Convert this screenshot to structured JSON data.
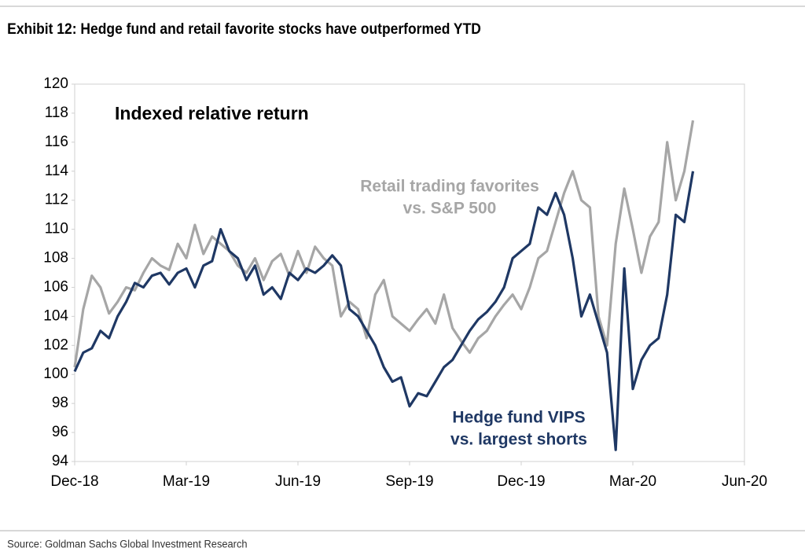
{
  "header": {
    "title": "Exhibit 12: Hedge fund and retail favorite stocks have outperformed YTD"
  },
  "chart_data": {
    "type": "line",
    "title": "Indexed relative return",
    "categories": [
      "Dec-18",
      null,
      null,
      null,
      null,
      null,
      null,
      null,
      null,
      null,
      null,
      null,
      null,
      "Mar-19",
      null,
      null,
      null,
      null,
      null,
      null,
      null,
      null,
      null,
      null,
      null,
      null,
      "Jun-19",
      null,
      null,
      null,
      null,
      null,
      null,
      null,
      null,
      null,
      null,
      null,
      null,
      "Sep-19",
      null,
      null,
      null,
      null,
      null,
      null,
      null,
      null,
      null,
      null,
      null,
      null,
      "Dec-19",
      null,
      null,
      null,
      null,
      null,
      null,
      null,
      null,
      null,
      null,
      null,
      null,
      "Mar-20",
      null,
      null,
      null,
      null,
      null,
      null,
      null,
      null,
      null,
      null,
      null,
      null,
      "Jun-20"
    ],
    "series": [
      {
        "label_lines": [
          "Retail trading favorites",
          "vs. S&P 500"
        ],
        "color": "#a6a6a6",
        "values": [
          100.5,
          104.5,
          106.8,
          106.0,
          104.2,
          105.0,
          106.0,
          105.8,
          107.0,
          108.0,
          107.5,
          107.2,
          109.0,
          108.0,
          110.3,
          108.3,
          109.5,
          109.0,
          108.5,
          107.5,
          107.0,
          108.0,
          106.5,
          107.8,
          108.3,
          106.8,
          108.5,
          107.0,
          108.8,
          108.0,
          107.5,
          104.0,
          105.0,
          104.5,
          102.5,
          105.5,
          106.5,
          104.0,
          103.5,
          103.0,
          103.8,
          104.5,
          103.5,
          105.5,
          103.2,
          102.3,
          101.5,
          102.5,
          103.0,
          104.0,
          104.8,
          105.5,
          104.5,
          106.0,
          108.0,
          108.5,
          110.5,
          112.5,
          114.0,
          112.0,
          111.5,
          104.0,
          102.0,
          109.0,
          112.8,
          110.0,
          107.0,
          109.5,
          110.5,
          116.0,
          112.0,
          114.0,
          117.5,
          null,
          null,
          null,
          null,
          null,
          null
        ]
      },
      {
        "label_lines": [
          "Hedge fund VIPS",
          "vs. largest shorts"
        ],
        "color": "#1f3864",
        "values": [
          100.2,
          101.5,
          101.8,
          103.0,
          102.5,
          104.0,
          105.0,
          106.3,
          106.0,
          106.8,
          107.0,
          106.2,
          107.0,
          107.3,
          106.0,
          107.5,
          107.8,
          110.0,
          108.5,
          108.0,
          106.5,
          107.5,
          105.5,
          106.0,
          105.2,
          107.0,
          106.5,
          107.3,
          107.0,
          107.5,
          108.2,
          107.5,
          104.5,
          104.0,
          103.0,
          102.0,
          100.5,
          99.5,
          99.8,
          97.8,
          98.7,
          98.5,
          99.5,
          100.5,
          101.0,
          102.0,
          103.0,
          103.8,
          104.3,
          105.0,
          106.0,
          108.0,
          108.5,
          109.0,
          111.5,
          111.0,
          112.5,
          111.0,
          108.0,
          104.0,
          105.5,
          103.5,
          101.5,
          94.8,
          107.3,
          99.0,
          101.0,
          102.0,
          102.5,
          105.5,
          111.0,
          110.5,
          114.0,
          null,
          null,
          null,
          null,
          null,
          null
        ]
      }
    ],
    "ylim": [
      94,
      120
    ],
    "yticks": [
      94,
      96,
      98,
      100,
      102,
      104,
      106,
      108,
      110,
      112,
      114,
      116,
      118,
      120
    ],
    "grid": false
  },
  "footer": {
    "source": "Source: Goldman Sachs Global Investment Research"
  }
}
